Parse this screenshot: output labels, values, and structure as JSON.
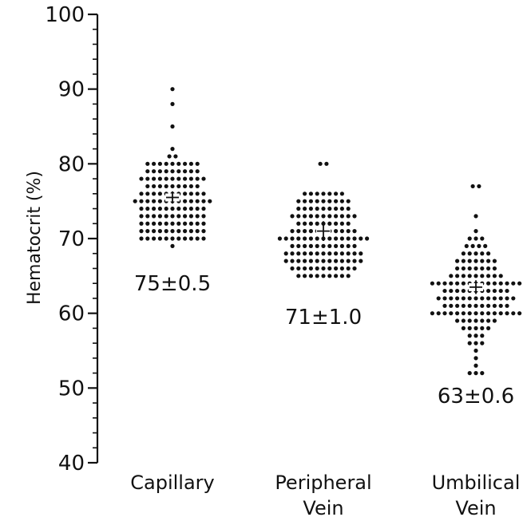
{
  "chart_data": {
    "type": "scatter",
    "title": "",
    "xlabel": "",
    "ylabel": "Hematocrit (%)",
    "ylim": [
      40,
      100
    ],
    "yticks": [
      40,
      50,
      60,
      70,
      80,
      90,
      100
    ],
    "grid": false,
    "categories": [
      {
        "lines": [
          "Capillary"
        ]
      },
      {
        "lines": [
          "Peripheral",
          "Vein"
        ]
      },
      {
        "lines": [
          "Umbilical",
          "Vein"
        ]
      }
    ],
    "groups": [
      {
        "category": "Capillary",
        "mean": 75.5,
        "sem": 0.5,
        "annotation": "75±0.5",
        "rows": [
          {
            "y": 90,
            "n": 1
          },
          {
            "y": 88,
            "n": 1
          },
          {
            "y": 85,
            "n": 1
          },
          {
            "y": 82,
            "n": 1
          },
          {
            "y": 81,
            "n": 2
          },
          {
            "y": 80,
            "n": 9
          },
          {
            "y": 79,
            "n": 9
          },
          {
            "y": 78,
            "n": 11
          },
          {
            "y": 77,
            "n": 9
          },
          {
            "y": 76,
            "n": 11
          },
          {
            "y": 75,
            "n": 13
          },
          {
            "y": 74,
            "n": 11
          },
          {
            "y": 73,
            "n": 11
          },
          {
            "y": 72,
            "n": 11
          },
          {
            "y": 71,
            "n": 11
          },
          {
            "y": 70,
            "n": 11
          },
          {
            "y": 69,
            "n": 1
          }
        ]
      },
      {
        "category": "Peripheral Vein",
        "mean": 71,
        "sem": 1.0,
        "annotation": "71±1.0",
        "rows": [
          {
            "y": 80,
            "n": 2
          },
          {
            "y": 76,
            "n": 7
          },
          {
            "y": 75,
            "n": 9
          },
          {
            "y": 74,
            "n": 9
          },
          {
            "y": 73,
            "n": 11
          },
          {
            "y": 72,
            "n": 9
          },
          {
            "y": 71,
            "n": 11
          },
          {
            "y": 70,
            "n": 15
          },
          {
            "y": 69,
            "n": 11
          },
          {
            "y": 68,
            "n": 13
          },
          {
            "y": 67,
            "n": 13
          },
          {
            "y": 66,
            "n": 11
          },
          {
            "y": 65,
            "n": 9
          }
        ]
      },
      {
        "category": "Umbilical Vein",
        "mean": 63.5,
        "sem": 0.6,
        "annotation": "63±0.6",
        "rows": [
          {
            "y": 77,
            "n": 2
          },
          {
            "y": 73,
            "n": 1
          },
          {
            "y": 71,
            "n": 1
          },
          {
            "y": 70,
            "n": 3
          },
          {
            "y": 69,
            "n": 4
          },
          {
            "y": 68,
            "n": 5
          },
          {
            "y": 67,
            "n": 7
          },
          {
            "y": 66,
            "n": 7
          },
          {
            "y": 65,
            "n": 9
          },
          {
            "y": 64,
            "n": 15
          },
          {
            "y": 63,
            "n": 11
          },
          {
            "y": 62,
            "n": 13
          },
          {
            "y": 61,
            "n": 11
          },
          {
            "y": 60,
            "n": 15
          },
          {
            "y": 59,
            "n": 7
          },
          {
            "y": 58,
            "n": 5
          },
          {
            "y": 57,
            "n": 3
          },
          {
            "y": 56,
            "n": 3
          },
          {
            "y": 55,
            "n": 1
          },
          {
            "y": 54,
            "n": 1
          },
          {
            "y": 53,
            "n": 1
          },
          {
            "y": 52,
            "n": 3
          }
        ]
      }
    ],
    "colors": {
      "ink": "#111111",
      "background": "#ffffff"
    }
  }
}
